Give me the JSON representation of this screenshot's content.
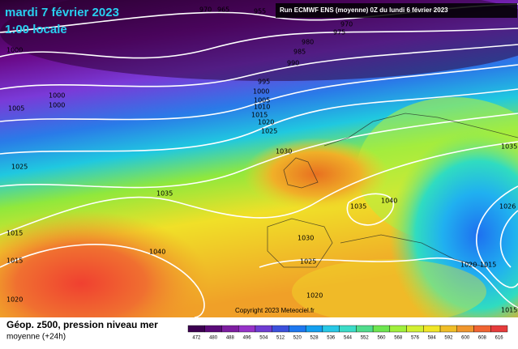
{
  "header": {
    "date": "mardi 7 février 2023",
    "time": "1:00 locale",
    "run": "Run ECMWF ENS (moyenne) 0Z du lundi 6 février 2023"
  },
  "footer": {
    "title": "Géop. z500, pression niveau mer",
    "subtitle": "moyenne  (+24h)",
    "copyright": "Copyright 2023 Meteociel.fr"
  },
  "contour_labels": [
    "970",
    "965",
    "955",
    "970",
    "975",
    "980",
    "985",
    "990",
    "995",
    "1000",
    "1005",
    "1010",
    "1015",
    "1020",
    "1025",
    "1000",
    "1000",
    "1000",
    "1005",
    "1025",
    "1030",
    "1035",
    "1035",
    "1040",
    "1015",
    "1040",
    "1030",
    "1025",
    "1020",
    "1015",
    "1020",
    "1035",
    "1026",
    "1020",
    "1015",
    "1015"
  ],
  "colorbar": {
    "labels": [
      "472",
      "480",
      "488",
      "496",
      "504",
      "512",
      "520",
      "528",
      "536",
      "544",
      "552",
      "560",
      "568",
      "576",
      "584",
      "592",
      "600",
      "608",
      "616"
    ],
    "colors": [
      "#3c0050",
      "#5a0a78",
      "#7d1ea0",
      "#9632c8",
      "#6e3cd2",
      "#3c50dc",
      "#1e78f0",
      "#14a0f0",
      "#28c8e6",
      "#3cdcc8",
      "#50dc8c",
      "#6ee650",
      "#a0f03c",
      "#d2f032",
      "#f0e628",
      "#f0be28",
      "#f0962d",
      "#f06432",
      "#e63c3c"
    ]
  }
}
